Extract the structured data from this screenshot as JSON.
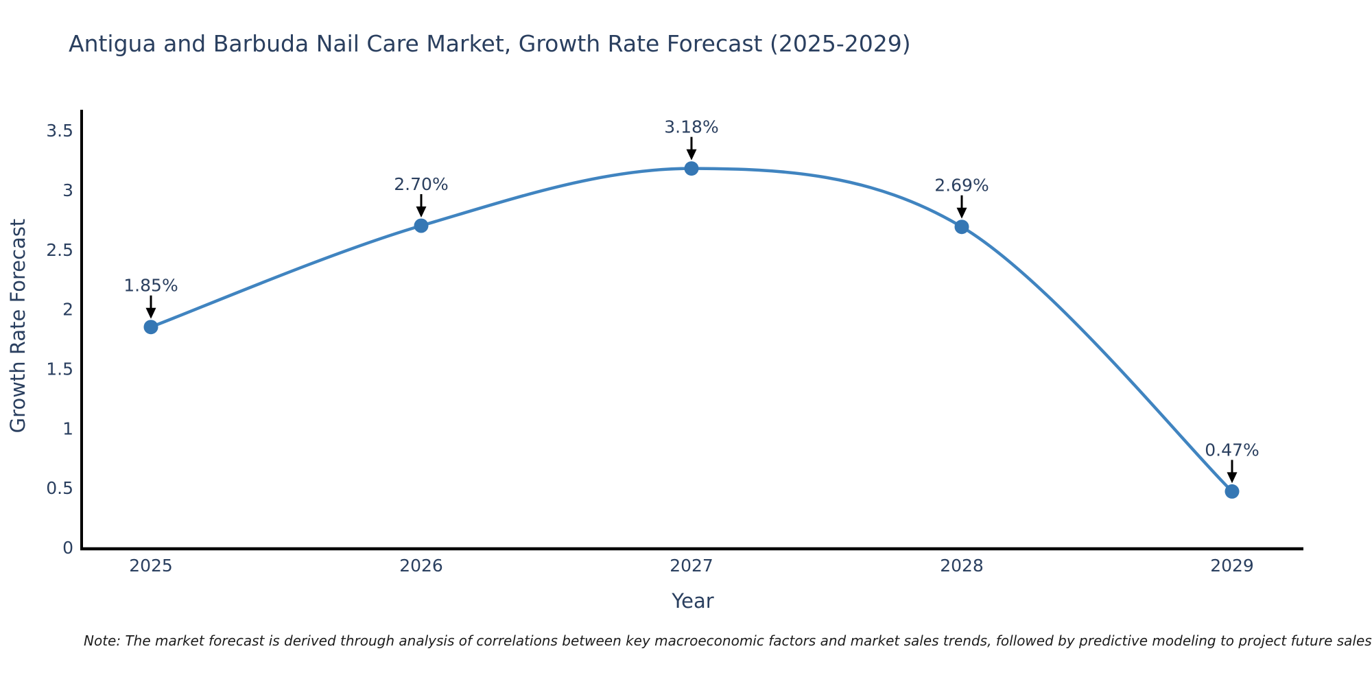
{
  "title": "Antigua and Barbuda Nail Care Market, Growth Rate Forecast (2025-2029)",
  "note": "Note: The market forecast is derived through analysis of correlations between key macroeconomic factors and market sales trends, followed by predictive modeling to project future sales",
  "chart_data": {
    "type": "line",
    "title": "Antigua and Barbuda Nail Care Market, Growth Rate Forecast (2025-2029)",
    "x": [
      "2025",
      "2026",
      "2027",
      "2028",
      "2029"
    ],
    "series": [
      {
        "name": "Growth Rate Forecast",
        "values": [
          1.85,
          2.7,
          3.18,
          2.69,
          0.47
        ]
      }
    ],
    "point_labels": [
      "1.85%",
      "2.70%",
      "3.18%",
      "2.69%",
      "0.47%"
    ],
    "xlabel": "Year",
    "ylabel": "Growth Rate Forecast",
    "ylim": [
      0,
      3.5
    ],
    "yticks": [
      "0",
      "0.5",
      "1",
      "1.5",
      "2",
      "2.5",
      "3",
      "3.5"
    ],
    "grid": false,
    "legend_position": "none",
    "line_shape": "spline",
    "colors": {
      "line": "#4084c0",
      "marker": "#3577b4",
      "axis": "#000000",
      "text": "#2a3f5f",
      "annotation_arrow": "#000000",
      "background": "#ffffff"
    }
  }
}
